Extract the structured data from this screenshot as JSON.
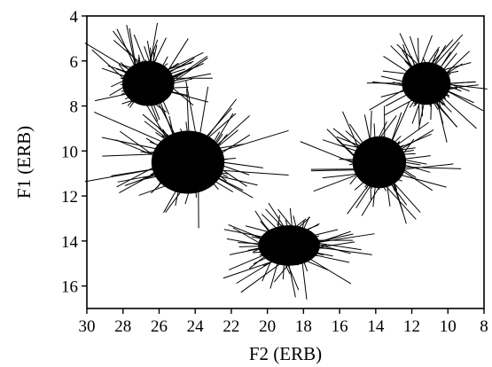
{
  "chart_data": {
    "type": "scatter",
    "title": "",
    "xlabel": "F2 (ERB)",
    "ylabel": "F1 (ERB)",
    "xlim": [
      30,
      8
    ],
    "ylim": [
      4,
      17
    ],
    "x_reversed": true,
    "y_reversed": true,
    "xticks": [
      30,
      28,
      26,
      24,
      22,
      20,
      18,
      16,
      14,
      12,
      10,
      8
    ],
    "yticks": [
      4,
      6,
      8,
      10,
      12,
      14,
      16
    ],
    "grid": false,
    "legend": "none",
    "marker": "line segments radiating from each cluster center",
    "clusters": [
      {
        "center": [
          26.6,
          7.0
        ],
        "x_spread": 3.2,
        "y_spread": 2.0
      },
      {
        "center": [
          24.4,
          10.5
        ],
        "x_spread": 4.5,
        "y_spread": 2.8
      },
      {
        "center": [
          18.8,
          14.2
        ],
        "x_spread": 3.8,
        "y_spread": 1.8
      },
      {
        "center": [
          13.8,
          10.5
        ],
        "x_spread": 3.3,
        "y_spread": 2.3
      },
      {
        "center": [
          11.2,
          7.0
        ],
        "x_spread": 3.0,
        "y_spread": 1.9
      }
    ],
    "line_color": "#000000"
  }
}
